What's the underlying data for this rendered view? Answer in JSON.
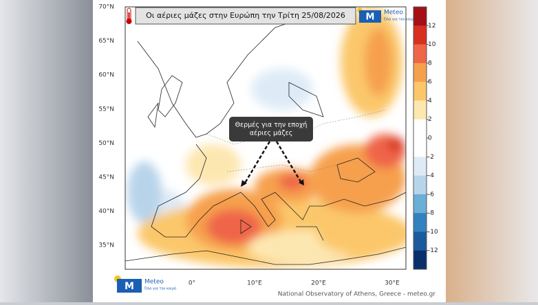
{
  "header": {
    "title": "Οι αέριες μάζες στην Ευρώπη την Τρίτη 25/08/2026"
  },
  "logo": {
    "name": "Meteo",
    "tagline": "Όλα για τον καιρό"
  },
  "map": {
    "lat_labels": [
      "70°N",
      "65°N",
      "60°N",
      "55°N",
      "50°N",
      "45°N",
      "40°N",
      "35°N"
    ],
    "lon_labels": [
      "0°",
      "10°E",
      "20°E",
      "30°E"
    ]
  },
  "colorbar": {
    "ticks": [
      12,
      10,
      8,
      6,
      4,
      2,
      0,
      -2,
      -4,
      -6,
      -8,
      -10,
      -12
    ],
    "colors": [
      "#a50f15",
      "#d7301f",
      "#ef6548",
      "#f6a04d",
      "#fbc76a",
      "#fde7b0",
      "#ffffff",
      "#ffffff",
      "#deebf7",
      "#b7d4ea",
      "#6baed6",
      "#3182bd",
      "#1c5a9e",
      "#08306b"
    ]
  },
  "annotation": {
    "text_lines": [
      "Θερμές για την εποχή",
      "αέριες μάζες"
    ]
  },
  "footer": {
    "credit": "National Observatory of Athens, Greece - meteo.gr"
  }
}
